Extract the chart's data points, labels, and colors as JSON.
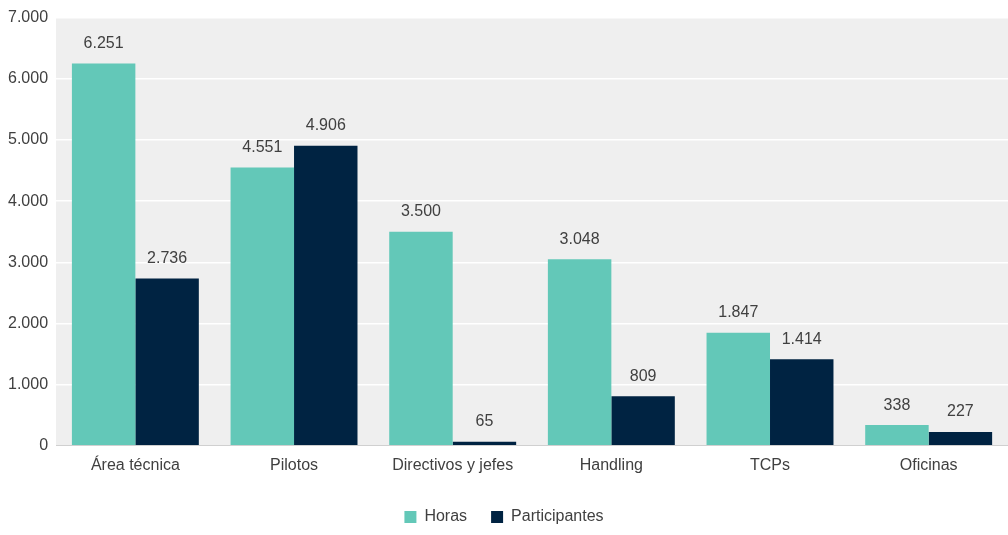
{
  "chart_data": {
    "type": "bar",
    "categories": [
      "Área técnica",
      "Pilotos",
      "Directivos y jefes",
      "Handling",
      "TCPs",
      "Oficinas"
    ],
    "series": [
      {
        "name": "Horas",
        "color": "#63c8b8",
        "values": [
          6251,
          4551,
          3500,
          3048,
          1847,
          338
        ],
        "value_labels": [
          "6.251",
          "4.551",
          "3.500",
          "3.048",
          "1.847",
          "338"
        ]
      },
      {
        "name": "Participantes",
        "color": "#002342",
        "values": [
          2736,
          4906,
          65,
          809,
          1414,
          227
        ],
        "value_labels": [
          "2.736",
          "4.906",
          "65",
          "809",
          "1.414",
          "227"
        ]
      }
    ],
    "ylim": [
      0,
      7000
    ],
    "yticks": [
      0,
      {
        "value": 1000,
        "label": "1.000"
      },
      {
        "value": 2000,
        "label": "2.000"
      },
      {
        "value": 3000,
        "label": "3.000"
      },
      {
        "value": 4000,
        "label": "4.000"
      },
      {
        "value": 5000,
        "label": "5.000"
      },
      {
        "value": 6000,
        "label": "6.000"
      },
      {
        "value": 7000,
        "label": "7.000"
      }
    ],
    "grid": "y",
    "legend": "bottom"
  }
}
